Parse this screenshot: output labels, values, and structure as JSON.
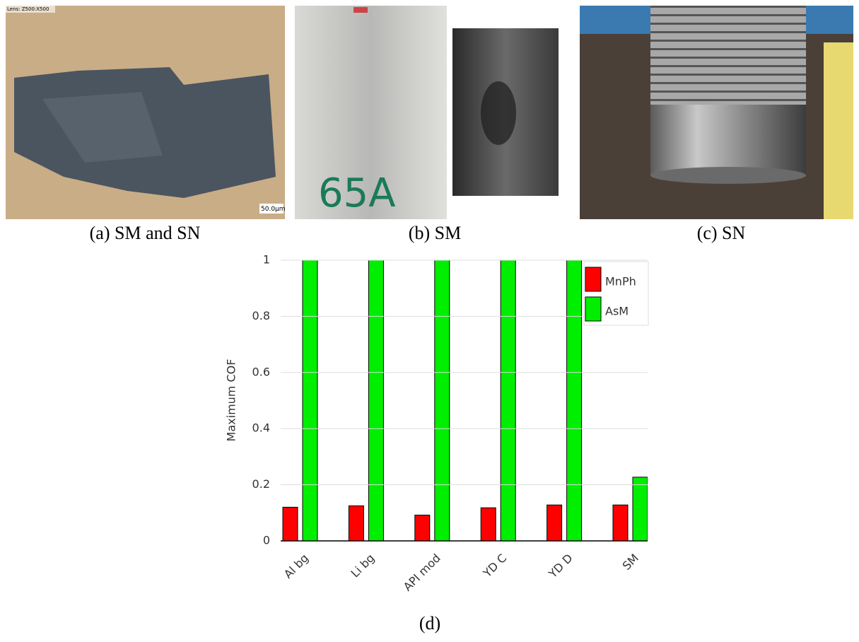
{
  "captions": [
    "(a) SM and SN",
    "(b) SM",
    "(c) SN",
    "(d)"
  ],
  "photo_texts": {
    "lens": "Lens: Z500:X500",
    "scale": "50.0µm",
    "sample": "65A"
  },
  "chart_data": {
    "type": "bar",
    "y_label": "Maximum COF",
    "categories": [
      "Al bg",
      "Li bg",
      "API mod",
      "YD C",
      "YD D",
      "SM"
    ],
    "series": [
      {
        "name": "MnPh",
        "color": "#ff0000",
        "values": [
          0.12,
          0.125,
          0.092,
          0.118,
          0.128,
          0.128
        ]
      },
      {
        "name": "AsM",
        "color": "#00ee00",
        "values": [
          1,
          1,
          1,
          1,
          1,
          0.227
        ]
      }
    ],
    "ylim": [
      0,
      1
    ],
    "yticks": [
      0,
      0.2,
      0.4,
      0.6,
      0.8,
      1
    ],
    "grid": true,
    "legend": "top-right"
  }
}
